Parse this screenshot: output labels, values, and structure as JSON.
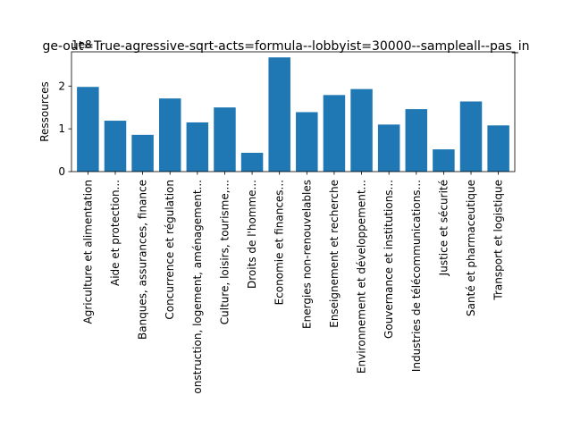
{
  "chart_data": {
    "type": "bar",
    "title": "ge-out=True-agressive-sqrt-acts=formula--lobbyist=30000--sampleall--pas_in",
    "xlabel": "",
    "ylabel": "Ressources",
    "offset_label": "1e8",
    "ylim": [
      0,
      2.8
    ],
    "yticks": [
      0,
      1,
      2
    ],
    "grid": false,
    "legend": "none",
    "bar_color": "#1f77b4",
    "categories": [
      "Agriculture et alimentation",
      "Aide et protection...",
      "Banques, assurances, finance",
      "Concurrence et régulation",
      "onstruction, logement, aménagement...",
      "Culture, loisirs, tourisme,...",
      "Droits de l'homme...",
      "Economie et finances...",
      "Energies non-renouvelables",
      "Enseignement et recherche",
      "Environnement et développement...",
      "Gouvernance et institutions...",
      "Industries de télécommunications...",
      "Justice et sécurité",
      "Santé et pharmaceutique",
      "Transport et logistique"
    ],
    "values": [
      1.98,
      1.19,
      0.86,
      1.71,
      1.15,
      1.5,
      0.44,
      2.67,
      1.39,
      1.79,
      1.93,
      1.1,
      1.46,
      0.52,
      1.64,
      1.08
    ]
  }
}
